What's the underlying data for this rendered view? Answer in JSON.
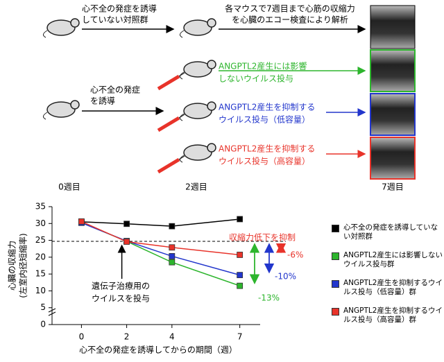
{
  "diagram": {
    "control_label": [
      "心不全の発症を誘導",
      "していない対照群"
    ],
    "analysis_label": [
      "各マウスで7週目まで心筋の収縮力",
      "を心臓のエコー検査により解析"
    ],
    "induce_label": [
      "心不全の発症",
      "を誘導"
    ],
    "green_label": [
      "ANGPTL2産生には影響",
      "しないウイルス投与"
    ],
    "blue_label": [
      "ANGPTL2産生を抑制する",
      "ウイルス投与（低容量）"
    ],
    "red_label": [
      "ANGPTL2産生を抑制する",
      "ウイルス投与（高容量）"
    ],
    "week_labels": [
      "0週目",
      "2週目",
      "7週目"
    ]
  },
  "chart_data": {
    "type": "line",
    "y_label": [
      "心臓の収縮力",
      "(左室内径短縮率)"
    ],
    "x_label": "心不全の発症を誘導してからの期間（週）",
    "x": [
      0,
      2,
      4,
      7
    ],
    "xlim": [
      -1.3,
      7.9
    ],
    "xticks": [
      0,
      2,
      4,
      7
    ],
    "ylim": [
      0,
      35
    ],
    "yticks": [
      0,
      5,
      10,
      15,
      20,
      25,
      30,
      35
    ],
    "reference_line": 24.7,
    "series": [
      {
        "name": "心不全の発症を誘導していない対照群",
        "color": "#000000",
        "values": [
          30.5,
          29.9,
          29.2,
          31.3
        ]
      },
      {
        "name": "ANGPTL2産生には影響しないウイルス投与群",
        "color": "#2db52d",
        "values": [
          30.3,
          24.7,
          18.5,
          11.5
        ]
      },
      {
        "name": "ANGPTL2産生を抑制するウイルス投与（低容量）群",
        "color": "#2236cc",
        "values": [
          30.2,
          24.8,
          20.3,
          14.7
        ]
      },
      {
        "name": "ANGPTL2産生を抑制するウイルス投与（高容量）群",
        "color": "#e8332a",
        "values": [
          30.6,
          24.6,
          22.9,
          20.7
        ]
      }
    ],
    "annotations": {
      "suppress": "収縮力低下を抑制",
      "red": "-6%",
      "blue": "-10%",
      "green": "-13%",
      "virus": [
        "遺伝子治療用の",
        "ウイルスを投与"
      ]
    }
  }
}
